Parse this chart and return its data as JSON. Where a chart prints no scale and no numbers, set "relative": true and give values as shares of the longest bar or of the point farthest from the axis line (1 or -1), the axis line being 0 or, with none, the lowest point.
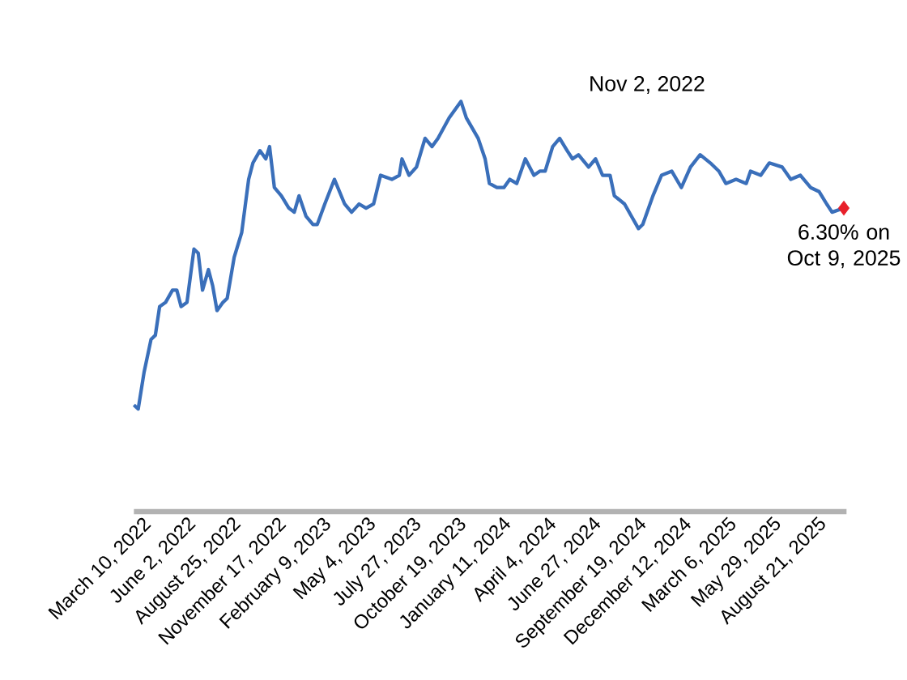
{
  "chart_data": {
    "type": "line",
    "relative": true,
    "tick_labels": "x",
    "grid": false,
    "xlim": [
      "2022-02-23",
      "2025-10-14"
    ],
    "xticks": [
      {
        "value": "2022-03-10",
        "label": "March 10, 2022"
      },
      {
        "value": "2022-06-02",
        "label": "June 2, 2022"
      },
      {
        "value": "2022-08-25",
        "label": "August 25, 2022"
      },
      {
        "value": "2022-11-17",
        "label": "November 17, 2022"
      },
      {
        "value": "2023-02-09",
        "label": "February 9, 2023"
      },
      {
        "value": "2023-05-04",
        "label": "May 4, 2023"
      },
      {
        "value": "2023-07-27",
        "label": "July 27, 2023"
      },
      {
        "value": "2023-10-19",
        "label": "October 19, 2023"
      },
      {
        "value": "2024-01-11",
        "label": "January 11, 2024"
      },
      {
        "value": "2024-04-04",
        "label": "April 4, 2024"
      },
      {
        "value": "2024-06-27",
        "label": "June 27, 2024"
      },
      {
        "value": "2024-09-19",
        "label": "September 19, 2024"
      },
      {
        "value": "2024-12-12",
        "label": "December 12, 2024"
      },
      {
        "value": "2025-03-06",
        "label": "March 6, 2025"
      },
      {
        "value": "2025-05-29",
        "label": "May 29, 2025"
      },
      {
        "value": "2025-08-21",
        "label": "August 21, 2025"
      }
    ],
    "series": [
      {
        "marker": "none",
        "color": "#3a6fba",
        "x": [
          "2022-02-23",
          "2022-03-03",
          "2022-03-14",
          "2022-03-27",
          "2022-04-04",
          "2022-04-12",
          "2022-04-23",
          "2022-05-06",
          "2022-05-14",
          "2022-05-22",
          "2022-06-02",
          "2022-06-15",
          "2022-06-23",
          "2022-07-01",
          "2022-07-12",
          "2022-07-20",
          "2022-07-28",
          "2022-08-08",
          "2022-08-16",
          "2022-08-29",
          "2022-09-12",
          "2022-09-25",
          "2022-10-03",
          "2022-10-16",
          "2022-10-27",
          "2022-11-03",
          "2022-11-12",
          "2022-11-25",
          "2022-12-09",
          "2022-12-19",
          "2022-12-28",
          "2023-01-10",
          "2023-01-23",
          "2023-01-31",
          "2023-02-14",
          "2023-03-04",
          "2023-03-23",
          "2023-04-05",
          "2023-04-19",
          "2023-05-02",
          "2023-05-16",
          "2023-05-29",
          "2023-06-19",
          "2023-07-03",
          "2023-07-08",
          "2023-07-21",
          "2023-08-04",
          "2023-08-20",
          "2023-09-02",
          "2023-09-13",
          "2023-10-04",
          "2023-10-26",
          "2023-11-05",
          "2023-11-27",
          "2023-12-10",
          "2023-12-18",
          "2024-01-01",
          "2024-01-14",
          "2024-01-25",
          "2024-02-07",
          "2024-02-23",
          "2024-03-10",
          "2024-03-21",
          "2024-03-31",
          "2024-04-14",
          "2024-04-27",
          "2024-05-11",
          "2024-05-21",
          "2024-06-01",
          "2024-06-20",
          "2024-07-03",
          "2024-07-16",
          "2024-07-30",
          "2024-08-07",
          "2024-08-26",
          "2024-09-08",
          "2024-09-21",
          "2024-09-29",
          "2024-10-18",
          "2024-11-03",
          "2024-11-22",
          "2024-12-10",
          "2024-12-27",
          "2025-01-14",
          "2025-02-02",
          "2025-02-18",
          "2025-03-03",
          "2025-03-22",
          "2025-04-10",
          "2025-04-18",
          "2025-05-07",
          "2025-05-23",
          "2025-06-16",
          "2025-07-02",
          "2025-07-20",
          "2025-08-08",
          "2025-08-24",
          "2025-09-07",
          "2025-09-17",
          "2025-10-09"
        ],
        "values": [
          0.26,
          0.25,
          0.34,
          0.42,
          0.43,
          0.5,
          0.51,
          0.54,
          0.54,
          0.5,
          0.51,
          0.64,
          0.63,
          0.54,
          0.59,
          0.55,
          0.49,
          0.51,
          0.52,
          0.62,
          0.68,
          0.81,
          0.85,
          0.88,
          0.86,
          0.89,
          0.79,
          0.77,
          0.74,
          0.73,
          0.77,
          0.72,
          0.7,
          0.7,
          0.75,
          0.81,
          0.75,
          0.73,
          0.75,
          0.74,
          0.75,
          0.82,
          0.81,
          0.82,
          0.86,
          0.82,
          0.84,
          0.91,
          0.89,
          0.91,
          0.96,
          1.0,
          0.96,
          0.91,
          0.86,
          0.8,
          0.79,
          0.79,
          0.81,
          0.8,
          0.86,
          0.82,
          0.83,
          0.83,
          0.89,
          0.91,
          0.88,
          0.86,
          0.87,
          0.84,
          0.86,
          0.82,
          0.82,
          0.77,
          0.75,
          0.72,
          0.69,
          0.7,
          0.77,
          0.82,
          0.83,
          0.79,
          0.84,
          0.87,
          0.85,
          0.83,
          0.8,
          0.81,
          0.8,
          0.83,
          0.82,
          0.85,
          0.84,
          0.81,
          0.82,
          0.79,
          0.78,
          0.75,
          0.73,
          0.74
        ]
      },
      {
        "type": "scatter",
        "marker": "diamond",
        "color": "#e8202a",
        "x": [
          "2025-10-09"
        ],
        "values": [
          0.74
        ]
      }
    ],
    "annotations": [
      "Nov 2, 2022",
      {
        "text": "6.30% on Oct 9, 2025",
        "x": "2025-10-09",
        "y": 0.74
      }
    ]
  }
}
